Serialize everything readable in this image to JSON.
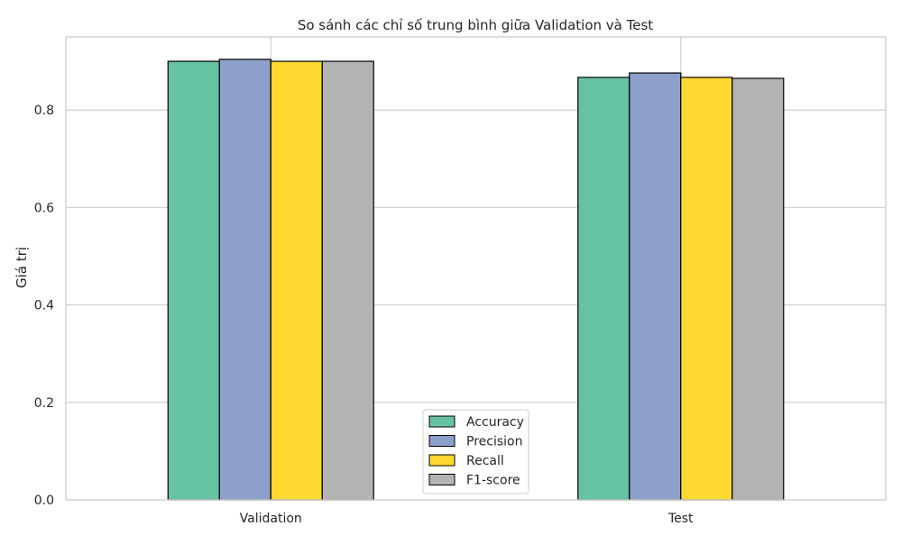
{
  "chart_data": {
    "type": "bar",
    "title": "So sánh các chỉ số trung bình giữa Validation và Test",
    "xlabel": "",
    "ylabel": "Giá trị",
    "categories": [
      "Validation",
      "Test"
    ],
    "series": [
      {
        "name": "Accuracy",
        "values": [
          0.9,
          0.867
        ],
        "color": "#66c2a5"
      },
      {
        "name": "Precision",
        "values": [
          0.904,
          0.876
        ],
        "color": "#8da0cb"
      },
      {
        "name": "Recall",
        "values": [
          0.9,
          0.867
        ],
        "color": "#ffd92f"
      },
      {
        "name": "F1-score",
        "values": [
          0.9,
          0.865
        ],
        "color": "#b3b3b3"
      }
    ],
    "ylim": [
      0,
      0.95
    ],
    "yticks": [
      "0.0",
      "0.2",
      "0.4",
      "0.6",
      "0.8"
    ],
    "grid": true,
    "legend_position": "bottom-center",
    "colors": {
      "grid": "#cccccc",
      "bar_edge": "#000000",
      "spine": "#cccccc"
    }
  }
}
